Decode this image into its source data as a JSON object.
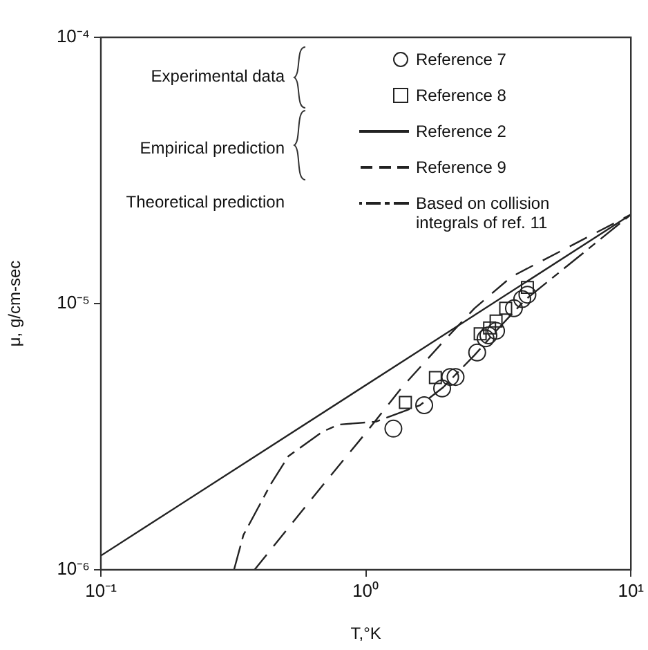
{
  "chart_data": {
    "type": "line",
    "xlabel": "T,°K",
    "ylabel": "μ, g/cm-sec",
    "log": "xy",
    "grid": false,
    "legend": "top",
    "xlim": [
      0.1,
      10
    ],
    "xticks": [
      {
        "value": 0.1,
        "label": "10⁻¹"
      },
      {
        "value": 1,
        "label": "10⁰"
      },
      {
        "value": 10,
        "label": "10¹"
      }
    ],
    "ylim": [
      1e-06,
      0.0001
    ],
    "yticks": [
      {
        "value": 1e-06,
        "label": "10⁻⁶"
      },
      {
        "value": 1e-05,
        "label": "10⁻⁵"
      },
      {
        "value": 0.0001,
        "label": "10⁻⁴"
      }
    ],
    "annotations": [
      "Experimental data",
      "Empirical prediction",
      "Theoretical prediction"
    ],
    "series": [
      {
        "name": "Reference 7",
        "type": "scatter",
        "marker": "circle",
        "color": "#222222",
        "x": [
          1.27,
          1.66,
          1.94,
          2.08,
          2.18,
          2.63,
          2.83,
          2.9,
          3.1,
          3.62,
          3.89,
          4.07
        ],
        "values": [
          3.39e-06,
          4.15e-06,
          4.8e-06,
          5.3e-06,
          5.3e-06,
          6.55e-06,
          7.4e-06,
          7.6e-06,
          7.9e-06,
          9.6e-06,
          1.04e-05,
          1.08e-05
        ]
      },
      {
        "name": "Reference 8",
        "type": "scatter",
        "marker": "square",
        "color": "#222222",
        "x": [
          1.41,
          1.83,
          2.7,
          2.93,
          3.1,
          3.37,
          4.07
        ],
        "values": [
          4.25e-06,
          5.27e-06,
          7.7e-06,
          8.1e-06,
          8.6e-06,
          9.6e-06,
          1.15e-05
        ]
      },
      {
        "name": "Reference 2",
        "line_style": "solid",
        "color": "#222222",
        "x": [
          0.1,
          10
        ],
        "values": [
          1.13e-06,
          2.16e-05
        ]
      },
      {
        "name": "Reference 9",
        "line_style": "dashed",
        "color": "#222222",
        "x": [
          0.38,
          0.68,
          1.0,
          1.37,
          1.96,
          2.57,
          3.54,
          10
        ],
        "values": [
          1e-06,
          2.05e-06,
          3.27e-06,
          4.85e-06,
          7.2e-06,
          9.6e-06,
          1.26e-05,
          2.16e-05
        ]
      },
      {
        "name": "Based on collision integrals of ref. 11",
        "line_style": "dashdot",
        "color": "#222222",
        "x": [
          0.318,
          0.345,
          0.438,
          0.51,
          0.686,
          0.79,
          1.09,
          1.6,
          1.96,
          2.57,
          3.14,
          3.98,
          10
        ],
        "values": [
          1e-06,
          1.35e-06,
          2.1e-06,
          2.67e-06,
          3.3e-06,
          3.51e-06,
          3.6e-06,
          4.15e-06,
          4.85e-06,
          6.4e-06,
          8e-06,
          1.03e-05,
          2.16e-05
        ]
      }
    ]
  }
}
